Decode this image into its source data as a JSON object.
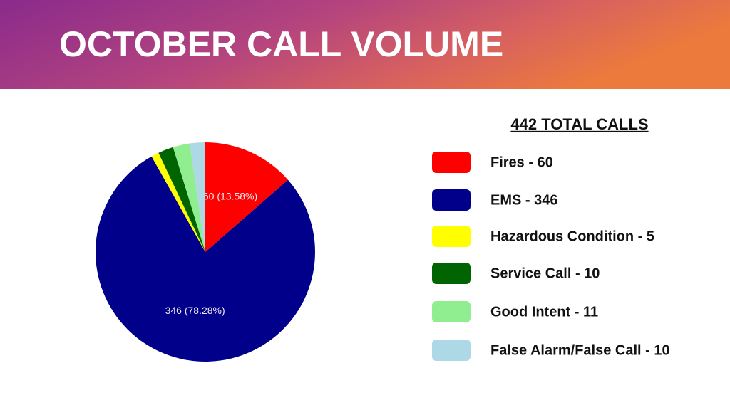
{
  "chart_data": {
    "type": "pie",
    "title": "OCTOBER CALL VOLUME",
    "subtitle": "442 TOTAL  CALLS",
    "categories": [
      "Fires - 60",
      "EMS - 346",
      "Hazardous Condition - 5",
      "Service Call - 10",
      "Good Intent - 11",
      "False Alarm/False Call - 10"
    ],
    "values": [
      60,
      346,
      5,
      10,
      11,
      10
    ],
    "value_labels": [
      "60 (13.58%)",
      "346 (78.28%)",
      null,
      null,
      null,
      null
    ],
    "colors": [
      "#ff0000",
      "#00008b",
      "#ffff00",
      "#006400",
      "#90ee90",
      "#add8e6"
    ],
    "legend": "right"
  }
}
